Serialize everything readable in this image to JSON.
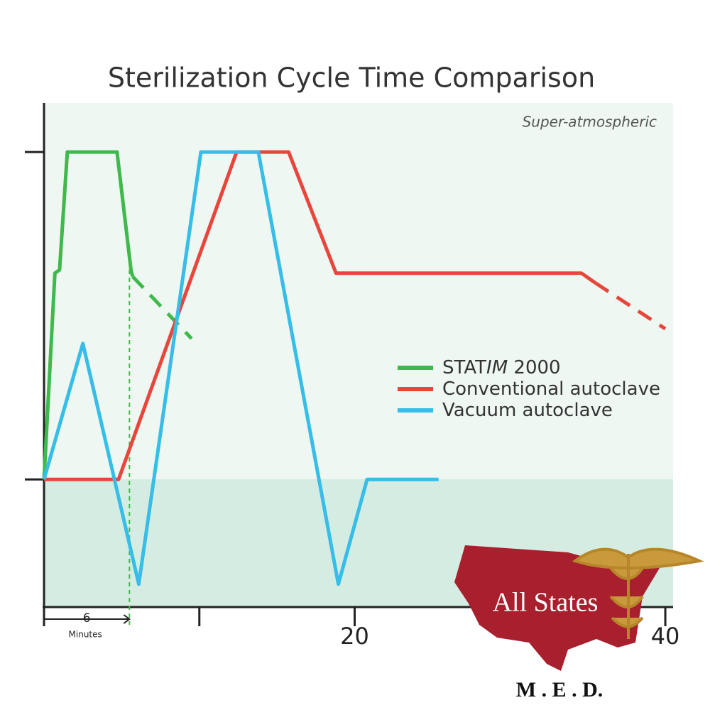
{
  "chart_data": {
    "type": "line",
    "title": "Sterilization Cycle Time Comparison",
    "annotations": {
      "region": "Super-atmospheric",
      "interval": "6",
      "interval_unit": "Minutes"
    },
    "xlim": [
      0,
      40.5
    ],
    "ylim": [
      -0.39,
      1.15
    ],
    "xticks": [
      20,
      40
    ],
    "xminor_ticks": [
      0,
      10
    ],
    "yticks_unlabeled": [
      0,
      1
    ],
    "interval_end": 5.5,
    "series": [
      {
        "name": "STAT",
        "name_italic": "IM",
        "name_rest": " 2000",
        "color": "#3fb94b",
        "x": [
          0,
          0.7,
          1,
          1.5,
          4.7,
          5.6,
          5.7,
          9.5
        ],
        "values": [
          0,
          0.63,
          0.64,
          1,
          1,
          0.64,
          0.62,
          0.43
        ],
        "dash_start": 6
      },
      {
        "name": "Conventional autoclave",
        "color": "#e8463c",
        "x": [
          0,
          4.8,
          12.4,
          15.75,
          18.8,
          34.6,
          35.5,
          40
        ],
        "values": [
          0,
          0,
          1,
          1,
          0.63,
          0.63,
          0.6,
          0.46
        ],
        "dash_start": 6
      },
      {
        "name": "Vacuum autoclave",
        "color": "#36bde8",
        "x": [
          0,
          2.5,
          6.1,
          10.1,
          13.8,
          18.95,
          20.8,
          25.4
        ],
        "values": [
          0,
          0.415,
          -0.32,
          1,
          1,
          -0.32,
          0,
          0
        ]
      }
    ]
  },
  "logo": {
    "name": "All States",
    "tagline": "M . E . D."
  }
}
